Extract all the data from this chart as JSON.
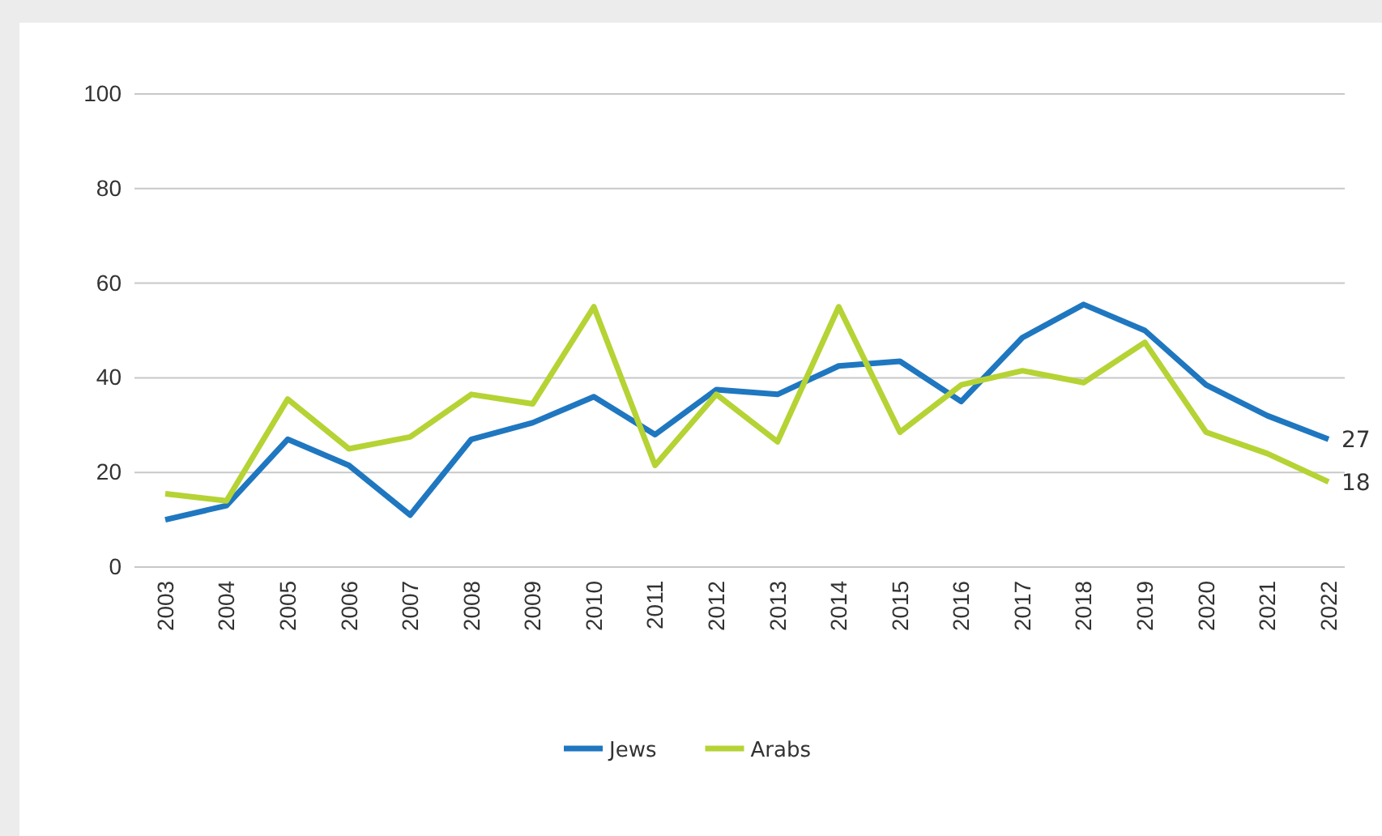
{
  "chart_data": {
    "type": "line",
    "categories": [
      "2003",
      "2004",
      "2005",
      "2006",
      "2007",
      "2008",
      "2009",
      "2010",
      "2011",
      "2012",
      "2013",
      "2014",
      "2015",
      "2016",
      "2017",
      "2018",
      "2019",
      "2020",
      "2021",
      "2022"
    ],
    "series": [
      {
        "name": "Jews",
        "color": "#1f77c0",
        "values": [
          10,
          13,
          27,
          21.5,
          11,
          27,
          30.5,
          36,
          28,
          37.5,
          36.5,
          42.5,
          43.5,
          35,
          48.5,
          55.5,
          50,
          38.5,
          32,
          27
        ],
        "value_labels": [
          null,
          null,
          null,
          null,
          null,
          null,
          null,
          null,
          null,
          null,
          null,
          null,
          null,
          null,
          null,
          null,
          null,
          null,
          null,
          "27"
        ]
      },
      {
        "name": "Arabs",
        "color": "#b5d334",
        "values": [
          15.5,
          14,
          35.5,
          25,
          27.5,
          36.5,
          34.5,
          55,
          21.5,
          36.5,
          26.5,
          55,
          28.5,
          38.5,
          41.5,
          39,
          47.5,
          28.5,
          24,
          18
        ],
        "value_labels": [
          null,
          null,
          null,
          null,
          null,
          null,
          null,
          null,
          null,
          null,
          null,
          null,
          null,
          null,
          null,
          null,
          null,
          null,
          null,
          "18"
        ]
      }
    ],
    "ylim": [
      0,
      100
    ],
    "yticks": [
      0,
      20,
      40,
      60,
      80,
      100
    ],
    "grid": "y",
    "legend": "bottom",
    "marker": "none",
    "line_style": "solid"
  }
}
